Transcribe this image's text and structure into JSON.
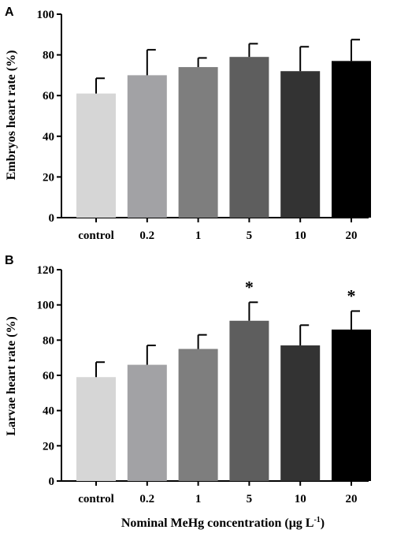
{
  "panels": [
    {
      "panel_label": "A",
      "chart_data": {
        "type": "bar",
        "categories": [
          "control",
          "0.2",
          "1",
          "5",
          "10",
          "20"
        ],
        "values": [
          61,
          70,
          74,
          79,
          72,
          77
        ],
        "errors": [
          7.5,
          12.5,
          4.5,
          6.5,
          12,
          10.5
        ],
        "significant": [
          false,
          false,
          false,
          false,
          false,
          false
        ],
        "significance_marker": "*",
        "ylabel": "Embryos heart rate (%)",
        "xlabel": "",
        "ylim": [
          0,
          100
        ],
        "yticks": [
          0,
          20,
          40,
          60,
          80,
          100
        ],
        "bar_colors": [
          "#d6d6d6",
          "#a2a2a5",
          "#7e7e7e",
          "#5e5e5e",
          "#333333",
          "#000000"
        ],
        "grid": false
      }
    },
    {
      "panel_label": "B",
      "chart_data": {
        "type": "bar",
        "categories": [
          "control",
          "0.2",
          "1",
          "5",
          "10",
          "20"
        ],
        "values": [
          59,
          66,
          75,
          91,
          77,
          86
        ],
        "errors": [
          8.5,
          11,
          8,
          10.5,
          11.5,
          10.5
        ],
        "significant": [
          false,
          false,
          false,
          true,
          false,
          true
        ],
        "significance_marker": "*",
        "ylabel": "Larvae heart rate (%)",
        "xlabel": "Nominal MeHg concentration (μg L",
        "xlabel_superscript": "-1",
        "xlabel_suffix": ")",
        "ylim": [
          0,
          120
        ],
        "yticks": [
          0,
          20,
          40,
          60,
          80,
          100,
          120
        ],
        "bar_colors": [
          "#d6d6d6",
          "#a2a2a5",
          "#7e7e7e",
          "#5e5e5e",
          "#333333",
          "#000000"
        ],
        "grid": false
      }
    }
  ]
}
